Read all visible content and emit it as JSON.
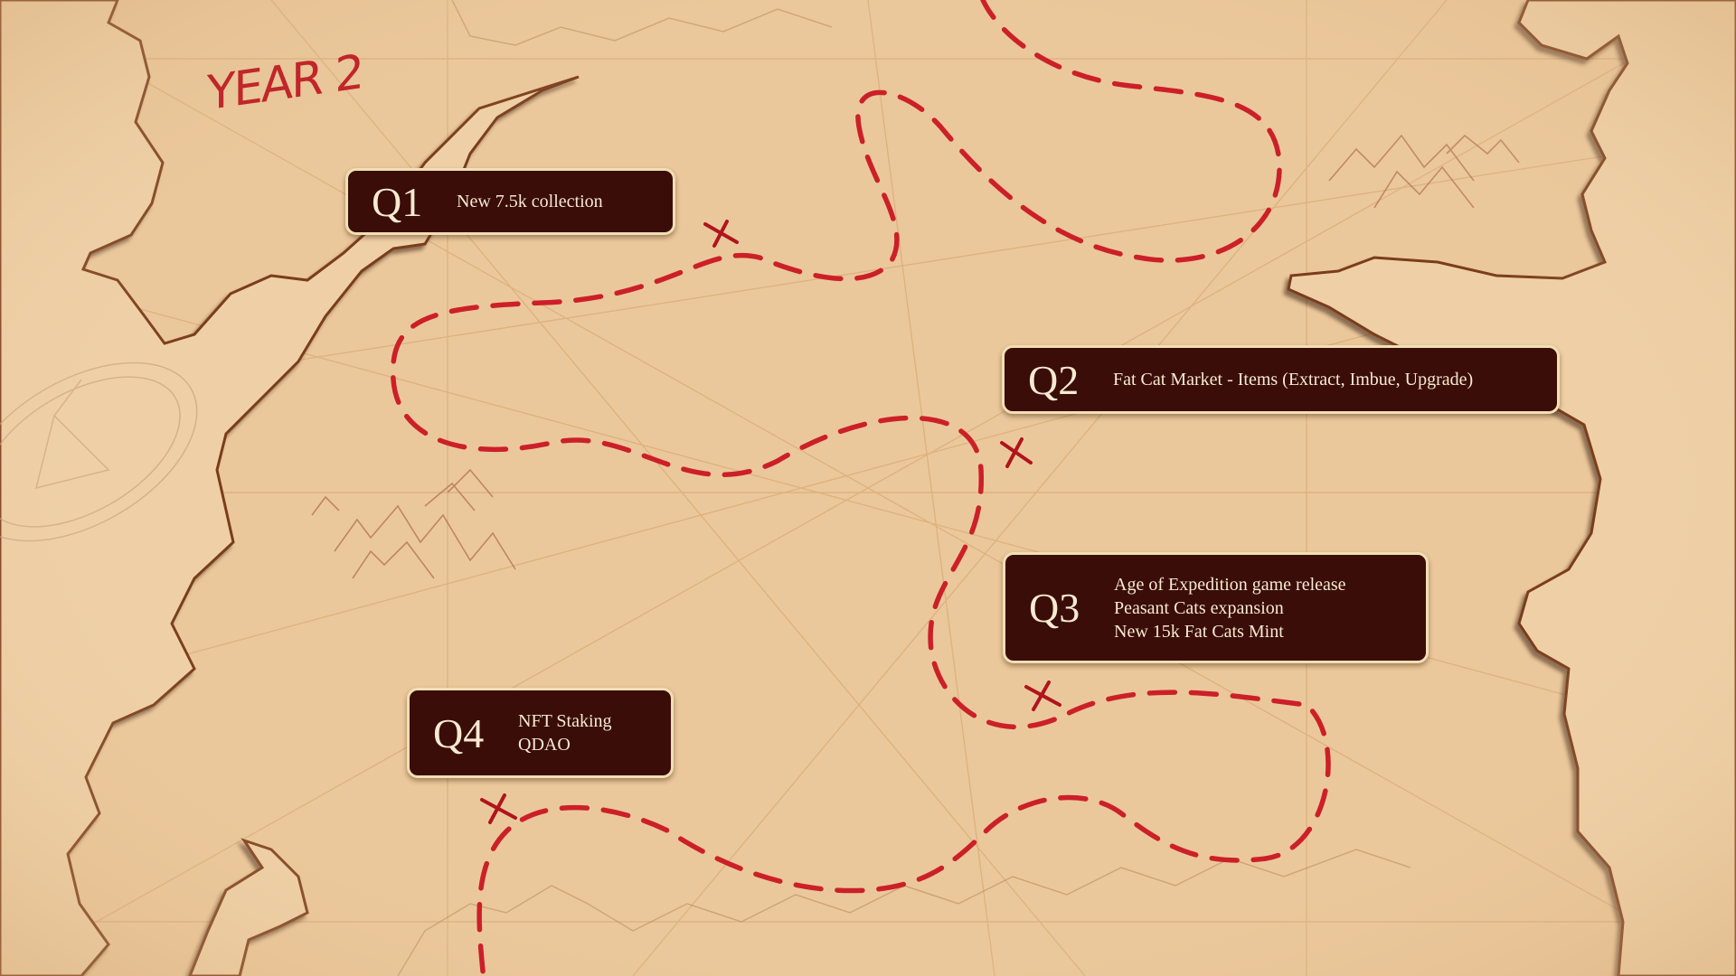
{
  "heading": "YEAR 2",
  "colors": {
    "parchment": "#ecc99c",
    "trail": "#cc2029",
    "card_bg": "#3a0d08",
    "card_border": "#f2dfb4",
    "card_text": "#f7ead0",
    "coast": "#7a3c1a"
  },
  "quarters": [
    {
      "label": "Q1",
      "lines": [
        "New 7.5k collection"
      ]
    },
    {
      "label": "Q2",
      "lines": [
        "Fat Cat Market - Items (Extract, Imbue, Upgrade)"
      ]
    },
    {
      "label": "Q3",
      "lines": [
        "Age of Expedition game release",
        "Peasant Cats expansion",
        "New 15k Fat Cats Mint"
      ]
    },
    {
      "label": "Q4",
      "lines": [
        "NFT Staking",
        "QDAO"
      ]
    }
  ]
}
